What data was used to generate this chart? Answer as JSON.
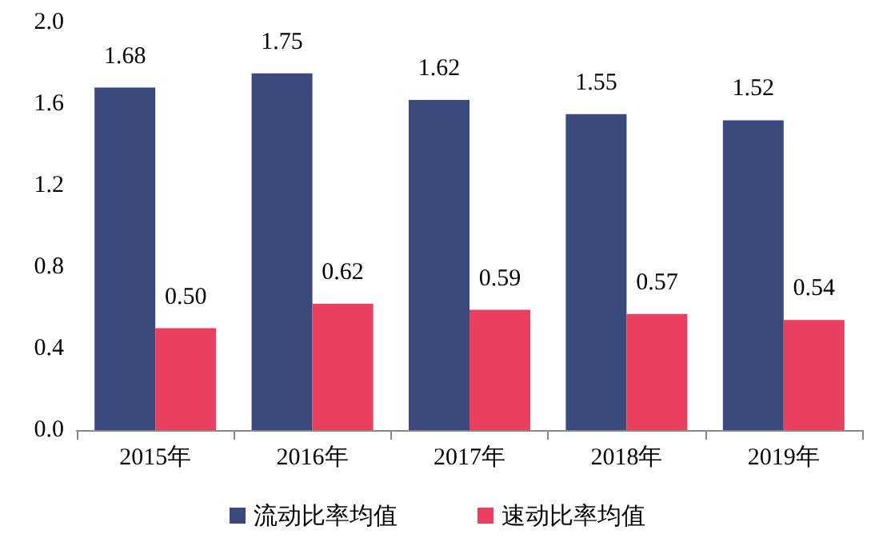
{
  "chart_data": {
    "type": "bar",
    "categories": [
      "2015年",
      "2016年",
      "2017年",
      "2018年",
      "2019年"
    ],
    "series": [
      {
        "name": "流动比率均值",
        "color": "#3b4a7c",
        "values": [
          1.68,
          1.75,
          1.62,
          1.55,
          1.52
        ],
        "value_labels": [
          "1.68",
          "1.75",
          "1.62",
          "1.55",
          "1.52"
        ]
      },
      {
        "name": "速动比率均值",
        "color": "#e9405f",
        "values": [
          0.5,
          0.62,
          0.59,
          0.57,
          0.54
        ],
        "value_labels": [
          "0.50",
          "0.62",
          "0.59",
          "0.57",
          "0.54"
        ]
      }
    ],
    "ylim": [
      0,
      2
    ],
    "yticks": [
      {
        "value": 0,
        "label": "0.0"
      },
      {
        "value": 0.4,
        "label": "0.4"
      },
      {
        "value": 0.8,
        "label": "0.8"
      },
      {
        "value": 1.2,
        "label": "1.2"
      },
      {
        "value": 1.6,
        "label": "1.6"
      },
      {
        "value": 2,
        "label": "2.0"
      }
    ],
    "grid": false,
    "legend": "bottom"
  }
}
